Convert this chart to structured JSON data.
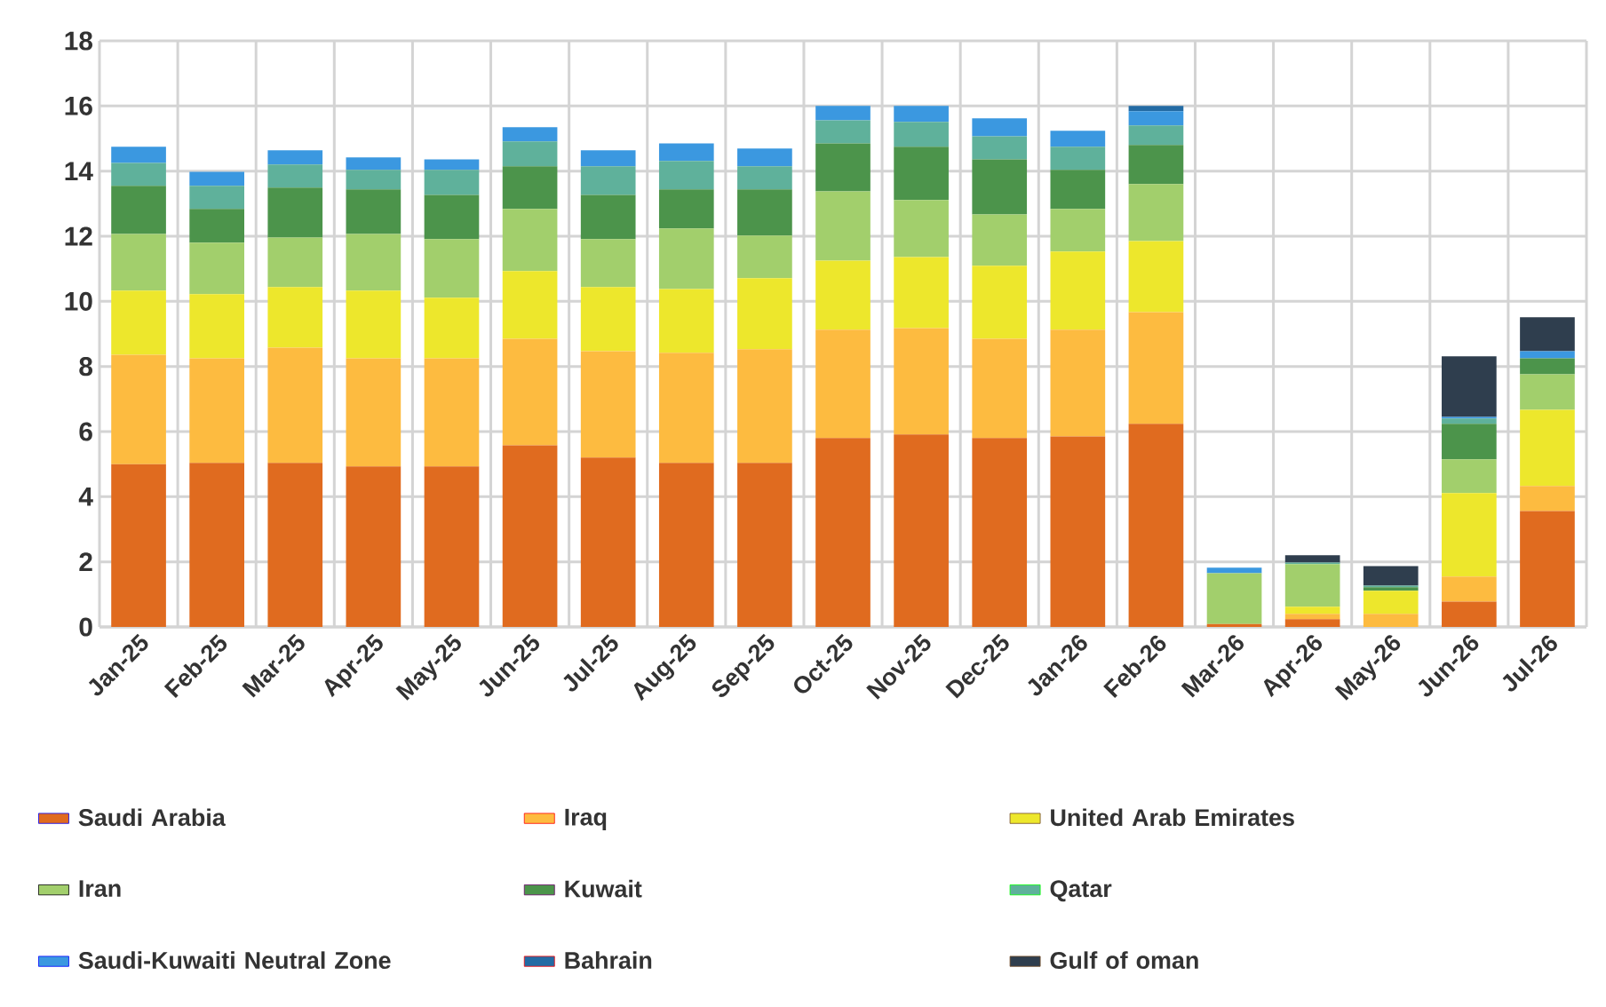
{
  "chart_data": {
    "type": "bar",
    "stacked": true,
    "grid": true,
    "legend": "bottom",
    "categories": [
      "Jan-25",
      "Feb-25",
      "Mar-25",
      "Apr-25",
      "May-25",
      "Jun-25",
      "Jul-25",
      "Aug-25",
      "Sep-25",
      "Oct-25",
      "Nov-25",
      "Dec-25",
      "Jan-26",
      "Feb-26",
      "Mar-26",
      "Apr-26",
      "May-26",
      "Jun-26",
      "Jul-26"
    ],
    "ylim": [
      0,
      18
    ],
    "yticks": [
      0,
      2,
      4,
      6,
      8,
      10,
      12,
      14,
      16,
      18
    ],
    "series": [
      {
        "name": "Saudi Arabia",
        "color": "#e06b1f",
        "values": [
          5.0,
          5.04,
          5.04,
          4.93,
          4.93,
          5.58,
          5.2,
          5.04,
          5.04,
          5.8,
          5.91,
          5.8,
          5.85,
          6.24,
          0.09,
          0.24,
          0,
          0.78,
          3.56
        ]
      },
      {
        "name": "Iraq",
        "color": "#fdbb40",
        "values": [
          3.36,
          3.21,
          3.54,
          3.32,
          3.32,
          3.27,
          3.27,
          3.38,
          3.49,
          3.33,
          3.27,
          3.05,
          3.28,
          3.43,
          0,
          0.16,
          0.4,
          0.77,
          0.77
        ]
      },
      {
        "name": "United Arab Emirates",
        "color": "#ede72c",
        "values": [
          1.97,
          1.97,
          1.86,
          2.08,
          1.86,
          2.08,
          1.97,
          1.96,
          2.18,
          2.12,
          2.18,
          2.24,
          2.4,
          2.18,
          0,
          0.22,
          0.71,
          2.56,
          2.34
        ]
      },
      {
        "name": "Iran",
        "color": "#a2cf6c",
        "values": [
          1.74,
          1.58,
          1.52,
          1.74,
          1.8,
          1.91,
          1.47,
          1.86,
          1.31,
          2.13,
          1.75,
          1.58,
          1.31,
          1.75,
          1.56,
          1.31,
          0,
          1.04,
          1.09
        ]
      },
      {
        "name": "Kuwait",
        "color": "#4c944b",
        "values": [
          1.48,
          1.04,
          1.53,
          1.37,
          1.36,
          1.31,
          1.36,
          1.2,
          1.42,
          1.47,
          1.64,
          1.69,
          1.2,
          1.2,
          0,
          0,
          0.11,
          1.09,
          0.49
        ]
      },
      {
        "name": "Qatar",
        "color": "#5fb19b",
        "values": [
          0.7,
          0.71,
          0.71,
          0.6,
          0.77,
          0.76,
          0.88,
          0.87,
          0.71,
          0.71,
          0.76,
          0.71,
          0.71,
          0.6,
          0,
          0.05,
          0.05,
          0.16,
          0
        ]
      },
      {
        "name": "Saudi-Kuwaiti Neutral Zone",
        "color": "#3b98e0",
        "values": [
          0.5,
          0.43,
          0.44,
          0.38,
          0.32,
          0.44,
          0.49,
          0.54,
          0.54,
          0.44,
          0.49,
          0.55,
          0.49,
          0.44,
          0.17,
          0,
          0,
          0.05,
          0.22
        ]
      },
      {
        "name": "Bahrain",
        "color": "#236ba4",
        "values": [
          0,
          0,
          0,
          0,
          0,
          0,
          0,
          0,
          0,
          0,
          0,
          0,
          0,
          0.16,
          0,
          0,
          0,
          0,
          0
        ]
      },
      {
        "name": "Gulf of oman",
        "color": "#2f3e4e",
        "values": [
          0,
          0,
          0,
          0,
          0,
          0,
          0,
          0,
          0,
          0,
          0,
          0,
          0,
          0,
          0,
          0.22,
          0.6,
          1.86,
          1.04
        ]
      }
    ]
  }
}
